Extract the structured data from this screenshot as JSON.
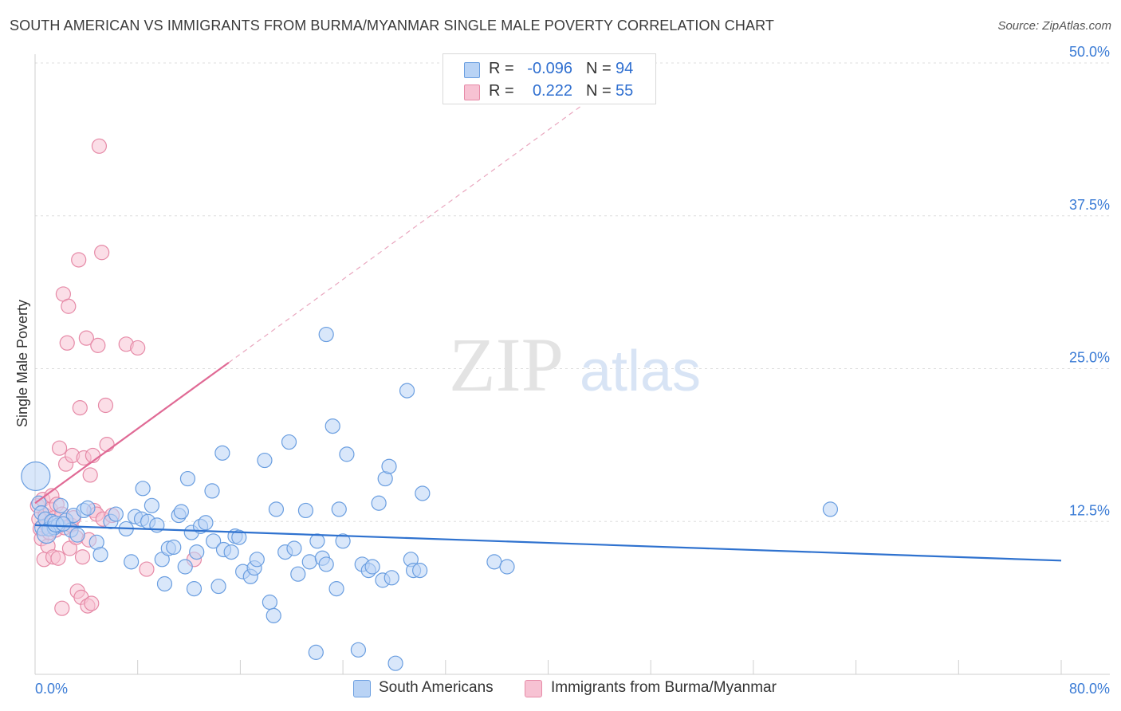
{
  "title": "SOUTH AMERICAN VS IMMIGRANTS FROM BURMA/MYANMAR SINGLE MALE POVERTY CORRELATION CHART",
  "source": "Source: ZipAtlas.com",
  "watermark": {
    "part1": "ZIP",
    "part2": "atlas"
  },
  "legend_top": {
    "rows": [
      {
        "r_label": "R =",
        "r_value": "-0.096",
        "n_label": "N =",
        "n_value": "94"
      },
      {
        "r_label": "R =",
        "r_value": "0.222",
        "n_label": "N =",
        "n_value": "55"
      }
    ]
  },
  "legend_bottom": {
    "items": [
      {
        "label": "South Americans"
      },
      {
        "label": "Immigrants from Burma/Myanmar"
      }
    ]
  },
  "colors": {
    "blue_fill": "#b9d3f5",
    "blue_stroke": "#6a9ee0",
    "blue_line": "#2f72cf",
    "pink_fill": "#f7c2d3",
    "pink_stroke": "#e68aa7",
    "pink_line": "#e06a95",
    "axis_text": "#3a7bd5",
    "grid": "#dddddd"
  },
  "chart_data": {
    "type": "scatter",
    "title": "SOUTH AMERICAN VS IMMIGRANTS FROM BURMA/MYANMAR SINGLE MALE POVERTY CORRELATION CHART",
    "xlabel": "",
    "ylabel": "Single Male Poverty",
    "xlim": [
      0,
      80
    ],
    "ylim": [
      0,
      50
    ],
    "x_tick_labels": [
      "0.0%",
      "80.0%"
    ],
    "y_ticks": [
      12.5,
      25.0,
      37.5,
      50.0
    ],
    "y_tick_labels": [
      "12.5%",
      "25.0%",
      "37.5%",
      "50.0%"
    ],
    "grid": true,
    "series": [
      {
        "name": "South Americans",
        "R": -0.096,
        "N": 94,
        "trend": {
          "x0": 0,
          "y0": 12.2,
          "x1": 80,
          "y1": 9.3
        },
        "points": [
          [
            0.05,
            16.2,
            18
          ],
          [
            0.3,
            14.0,
            9
          ],
          [
            0.5,
            13.2,
            9
          ],
          [
            0.6,
            12.0,
            10
          ],
          [
            0.8,
            12.7,
            9
          ],
          [
            1.1,
            11.9,
            9
          ],
          [
            1.3,
            12.5,
            9
          ],
          [
            1.5,
            12.0,
            9
          ],
          [
            1.8,
            12.2,
            9
          ],
          [
            2.0,
            13.8,
            9
          ],
          [
            2.4,
            12.6,
            9
          ],
          [
            2.8,
            11.8,
            9
          ],
          [
            3.0,
            13.0,
            9
          ],
          [
            3.3,
            11.4,
            9
          ],
          [
            3.8,
            13.4,
            9
          ],
          [
            4.1,
            13.6,
            9
          ],
          [
            4.8,
            10.8,
            9
          ],
          [
            5.1,
            9.8,
            9
          ],
          [
            5.9,
            12.5,
            9
          ],
          [
            6.3,
            13.1,
            9
          ],
          [
            7.1,
            11.9,
            9
          ],
          [
            7.5,
            9.2,
            9
          ],
          [
            7.8,
            12.9,
            9
          ],
          [
            8.3,
            12.7,
            9
          ],
          [
            8.4,
            15.2,
            9
          ],
          [
            8.8,
            12.5,
            9
          ],
          [
            9.1,
            13.8,
            9
          ],
          [
            9.5,
            12.2,
            9
          ],
          [
            9.9,
            9.4,
            9
          ],
          [
            10.1,
            7.4,
            9
          ],
          [
            10.4,
            10.3,
            9
          ],
          [
            10.8,
            10.4,
            9
          ],
          [
            11.2,
            13.0,
            9
          ],
          [
            11.4,
            13.3,
            9
          ],
          [
            11.7,
            8.8,
            9
          ],
          [
            11.9,
            16.0,
            9
          ],
          [
            12.2,
            11.6,
            9
          ],
          [
            12.4,
            7.0,
            9
          ],
          [
            12.6,
            10.0,
            9
          ],
          [
            12.9,
            12.1,
            9
          ],
          [
            13.3,
            12.4,
            9
          ],
          [
            13.8,
            15.0,
            9
          ],
          [
            13.9,
            10.9,
            9
          ],
          [
            14.3,
            7.2,
            9
          ],
          [
            14.6,
            18.1,
            9
          ],
          [
            14.7,
            10.2,
            9
          ],
          [
            15.3,
            10.0,
            9
          ],
          [
            15.6,
            11.3,
            9
          ],
          [
            15.9,
            11.2,
            9
          ],
          [
            16.2,
            8.4,
            9
          ],
          [
            16.8,
            8.0,
            9
          ],
          [
            17.1,
            8.7,
            9
          ],
          [
            17.3,
            9.4,
            9
          ],
          [
            17.9,
            17.5,
            9
          ],
          [
            18.3,
            5.9,
            9
          ],
          [
            18.6,
            4.8,
            9
          ],
          [
            18.8,
            13.5,
            9
          ],
          [
            19.5,
            10.0,
            9
          ],
          [
            19.8,
            19.0,
            9
          ],
          [
            20.2,
            10.3,
            9
          ],
          [
            20.5,
            8.2,
            9
          ],
          [
            21.1,
            13.4,
            9
          ],
          [
            21.4,
            9.2,
            9
          ],
          [
            21.9,
            1.8,
            9
          ],
          [
            22.0,
            10.9,
            9
          ],
          [
            22.4,
            9.5,
            9
          ],
          [
            22.7,
            9.0,
            9
          ],
          [
            23.2,
            20.3,
            9
          ],
          [
            23.5,
            7.0,
            9
          ],
          [
            23.7,
            13.5,
            9
          ],
          [
            24.0,
            10.9,
            9
          ],
          [
            24.3,
            18.0,
            9
          ],
          [
            25.2,
            2.0,
            9
          ],
          [
            25.5,
            9.0,
            9
          ],
          [
            26.0,
            8.5,
            9
          ],
          [
            26.3,
            8.8,
            9
          ],
          [
            26.8,
            14.0,
            9
          ],
          [
            27.1,
            7.7,
            9
          ],
          [
            27.3,
            16.0,
            9
          ],
          [
            27.6,
            17.0,
            9
          ],
          [
            27.8,
            7.9,
            9
          ],
          [
            28.1,
            0.9,
            9
          ],
          [
            29.0,
            23.2,
            9
          ],
          [
            29.3,
            9.4,
            9
          ],
          [
            29.5,
            8.5,
            9
          ],
          [
            30.0,
            8.5,
            9
          ],
          [
            30.2,
            14.8,
            9
          ],
          [
            22.7,
            27.8,
            9
          ],
          [
            35.8,
            9.2,
            9
          ],
          [
            36.8,
            8.8,
            9
          ],
          [
            62.0,
            13.5,
            9
          ],
          [
            0.9,
            11.5,
            12
          ],
          [
            1.6,
            12.3,
            10
          ],
          [
            2.2,
            12.3,
            9
          ]
        ]
      },
      {
        "name": "Immigrants from Burma/Myanmar",
        "R": 0.222,
        "N": 55,
        "trend_solid": {
          "x0": 0,
          "y0": 14.0,
          "x1": 15.1,
          "y1": 25.5
        },
        "trend_dashed": {
          "x0": 15.1,
          "y0": 25.5,
          "x1": 42.6,
          "y1": 46.5
        },
        "points": [
          [
            0.2,
            13.8,
            9
          ],
          [
            0.3,
            12.7,
            9
          ],
          [
            0.4,
            11.9,
            9
          ],
          [
            0.5,
            11.1,
            9
          ],
          [
            0.6,
            14.3,
            9
          ],
          [
            0.7,
            9.4,
            9
          ],
          [
            0.8,
            13.0,
            9
          ],
          [
            0.9,
            12.2,
            9
          ],
          [
            1.0,
            10.5,
            9
          ],
          [
            1.1,
            11.6,
            9
          ],
          [
            1.2,
            13.5,
            9
          ],
          [
            1.3,
            14.6,
            9
          ],
          [
            1.4,
            9.6,
            9
          ],
          [
            1.5,
            12.8,
            9
          ],
          [
            1.6,
            11.8,
            9
          ],
          [
            1.7,
            13.9,
            9
          ],
          [
            1.8,
            9.5,
            9
          ],
          [
            1.9,
            18.5,
            9
          ],
          [
            2.1,
            13.1,
            9
          ],
          [
            2.2,
            31.1,
            9
          ],
          [
            2.3,
            12.0,
            9
          ],
          [
            2.4,
            17.2,
            9
          ],
          [
            2.5,
            27.1,
            9
          ],
          [
            2.6,
            30.1,
            9
          ],
          [
            2.7,
            10.3,
            9
          ],
          [
            2.8,
            12.2,
            9
          ],
          [
            2.9,
            17.9,
            9
          ],
          [
            3.0,
            12.8,
            9
          ],
          [
            3.2,
            11.2,
            9
          ],
          [
            3.3,
            6.8,
            9
          ],
          [
            3.4,
            33.9,
            9
          ],
          [
            3.5,
            21.8,
            9
          ],
          [
            3.6,
            6.3,
            9
          ],
          [
            3.7,
            9.6,
            9
          ],
          [
            3.8,
            17.7,
            9
          ],
          [
            4.0,
            27.5,
            9
          ],
          [
            4.1,
            5.6,
            9
          ],
          [
            4.2,
            11.0,
            9
          ],
          [
            4.3,
            16.3,
            9
          ],
          [
            4.4,
            5.8,
            9
          ],
          [
            4.5,
            17.9,
            9
          ],
          [
            4.6,
            13.4,
            9
          ],
          [
            4.8,
            13.1,
            9
          ],
          [
            4.9,
            26.9,
            9
          ],
          [
            5.0,
            43.2,
            9
          ],
          [
            5.2,
            34.5,
            9
          ],
          [
            5.3,
            12.7,
            9
          ],
          [
            5.5,
            22.0,
            9
          ],
          [
            5.6,
            18.8,
            9
          ],
          [
            6.0,
            13.0,
            9
          ],
          [
            7.1,
            27.0,
            9
          ],
          [
            8.0,
            26.7,
            9
          ],
          [
            8.7,
            8.6,
            9
          ],
          [
            12.4,
            9.4,
            9
          ],
          [
            2.1,
            5.4,
            9
          ]
        ]
      }
    ]
  }
}
